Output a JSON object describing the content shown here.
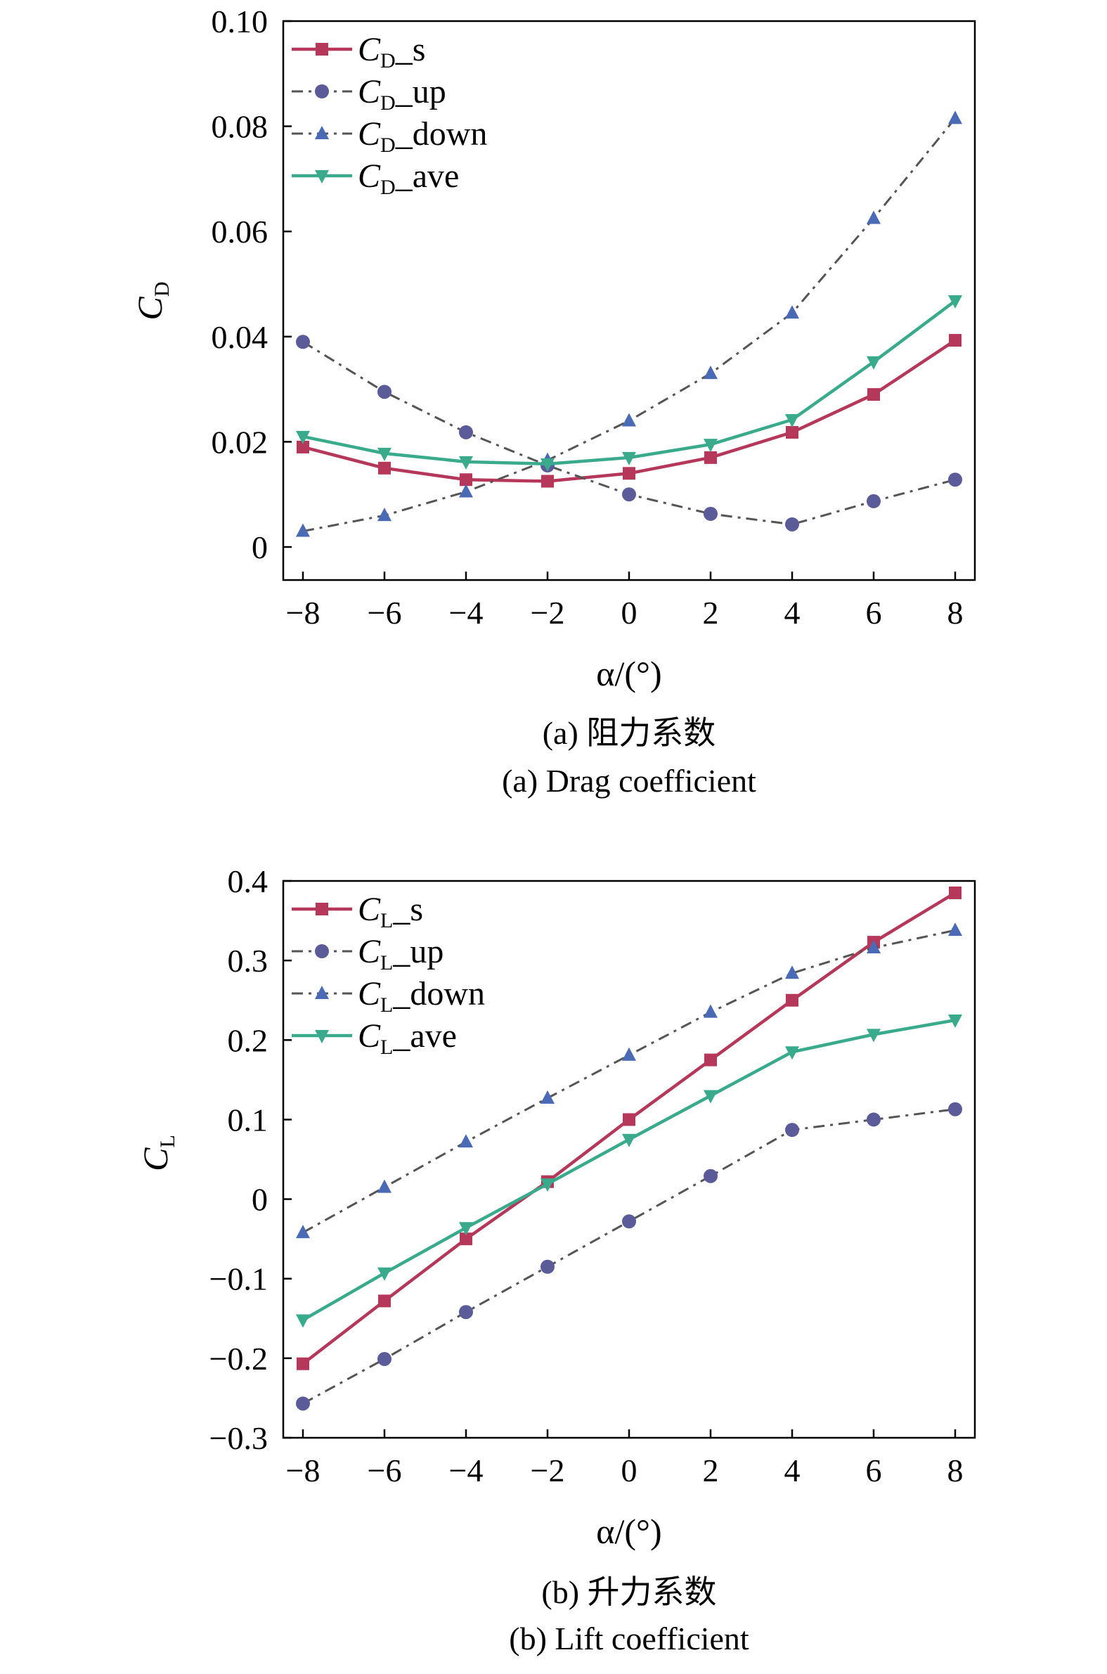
{
  "chart_data": [
    {
      "type": "line",
      "panel": "a",
      "caption_cn": "(a) 阻力系数",
      "caption_en": "(a) Drag coefficient",
      "xlabel": "α/(°)",
      "ylabel": "C",
      "ylabel_sub": "D",
      "xlim": [
        -8,
        8
      ],
      "ylim": [
        0,
        0.1
      ],
      "x_ticks": [
        -8,
        -6,
        -4,
        -2,
        0,
        2,
        4,
        6,
        8
      ],
      "x_tick_labels": [
        "−8",
        "−6",
        "−4",
        "−2",
        "0",
        "2",
        "4",
        "6",
        "8"
      ],
      "y_ticks": [
        0,
        0.02,
        0.04,
        0.06,
        0.08,
        0.1
      ],
      "y_tick_labels": [
        "0",
        "0.02",
        "0.04",
        "0.06",
        "0.08",
        "0.10"
      ],
      "grid": false,
      "legend_position": "top-left",
      "x": [
        -8,
        -6,
        -4,
        -2,
        0,
        2,
        4,
        6,
        8
      ],
      "series": [
        {
          "name_main": "C",
          "name_sub": "D",
          "name_suffix": "_s",
          "color": "#b5375a",
          "marker": "square",
          "dash": "solid",
          "values": [
            0.019,
            0.015,
            0.0128,
            0.0125,
            0.014,
            0.017,
            0.0218,
            0.029,
            0.0393
          ]
        },
        {
          "name_main": "C",
          "name_sub": "D",
          "name_suffix": "_up",
          "color": "#5b5b9a",
          "marker": "circle",
          "dash": "dashdot",
          "values": [
            0.039,
            0.0295,
            0.0218,
            0.0155,
            0.01,
            0.0063,
            0.0043,
            0.0087,
            0.0128
          ]
        },
        {
          "name_main": "C",
          "name_sub": "D",
          "name_suffix": "_down",
          "color": "#4a6ab5",
          "marker": "triangle-up",
          "dash": "dashdot",
          "values": [
            0.003,
            0.006,
            0.0105,
            0.0165,
            0.024,
            0.033,
            0.0445,
            0.0625,
            0.0815
          ]
        },
        {
          "name_main": "C",
          "name_sub": "D",
          "name_suffix": "_ave",
          "color": "#3aaa8c",
          "marker": "triangle-down",
          "dash": "solid",
          "values": [
            0.021,
            0.0178,
            0.0162,
            0.0158,
            0.017,
            0.0195,
            0.0242,
            0.0352,
            0.0468
          ]
        }
      ]
    },
    {
      "type": "line",
      "panel": "b",
      "caption_cn": "(b) 升力系数",
      "caption_en": "(b) Lift coefficient",
      "xlabel": "α/(°)",
      "ylabel": "C",
      "ylabel_sub": "L",
      "xlim": [
        -8,
        8
      ],
      "ylim": [
        -0.3,
        0.4
      ],
      "x_ticks": [
        -8,
        -6,
        -4,
        -2,
        0,
        2,
        4,
        6,
        8
      ],
      "x_tick_labels": [
        "−8",
        "−6",
        "−4",
        "−2",
        "0",
        "2",
        "4",
        "6",
        "8"
      ],
      "y_ticks": [
        -0.3,
        -0.2,
        -0.1,
        0,
        0.1,
        0.2,
        0.3,
        0.4
      ],
      "y_tick_labels": [
        "−0.3",
        "−0.2",
        "−0.1",
        "0",
        "0.1",
        "0.2",
        "0.3",
        "0.4"
      ],
      "grid": false,
      "legend_position": "top-left",
      "x": [
        -8,
        -6,
        -4,
        -2,
        0,
        2,
        4,
        6,
        8
      ],
      "series": [
        {
          "name_main": "C",
          "name_sub": "L",
          "name_suffix": "_s",
          "color": "#b5375a",
          "marker": "square",
          "dash": "solid",
          "values": [
            -0.207,
            -0.128,
            -0.05,
            0.022,
            0.1,
            0.175,
            0.25,
            0.323,
            0.385
          ]
        },
        {
          "name_main": "C",
          "name_sub": "L",
          "name_suffix": "_up",
          "color": "#5b5b9a",
          "marker": "circle",
          "dash": "dashdot",
          "values": [
            -0.257,
            -0.201,
            -0.142,
            -0.085,
            -0.028,
            0.029,
            0.087,
            0.1,
            0.113
          ]
        },
        {
          "name_main": "C",
          "name_sub": "L",
          "name_suffix": "_down",
          "color": "#4a6ab5",
          "marker": "triangle-up",
          "dash": "dashdot",
          "values": [
            -0.042,
            0.015,
            0.072,
            0.127,
            0.181,
            0.235,
            0.284,
            0.316,
            0.338
          ]
        },
        {
          "name_main": "C",
          "name_sub": "L",
          "name_suffix": "_ave",
          "color": "#3aaa8c",
          "marker": "triangle-down",
          "dash": "solid",
          "values": [
            -0.152,
            -0.093,
            -0.036,
            0.019,
            0.075,
            0.13,
            0.185,
            0.207,
            0.225
          ]
        }
      ]
    }
  ]
}
